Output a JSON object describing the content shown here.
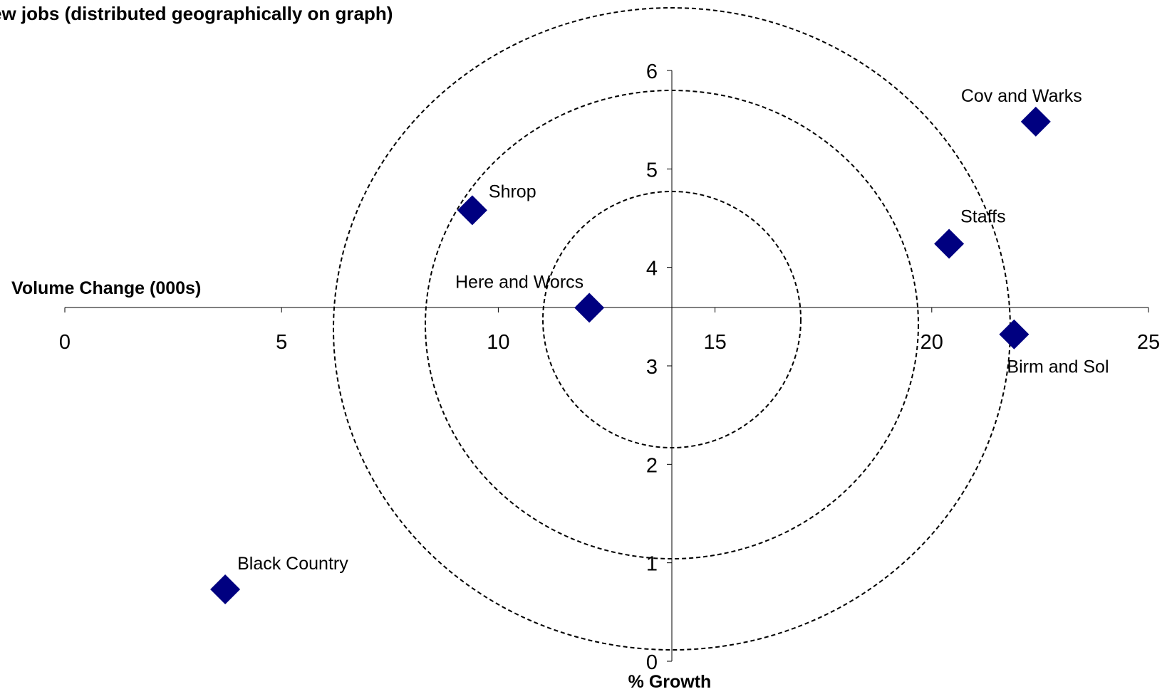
{
  "chart_data": {
    "type": "scatter",
    "title": "ew jobs (distributed geographically on graph)",
    "xlabel": "Volume Change (000s)",
    "ylabel": "% Growth",
    "xlim": [
      0,
      25
    ],
    "ylim": [
      0,
      6
    ],
    "x_ticks": [
      "0",
      "5",
      "10",
      "15",
      "20",
      "25"
    ],
    "y_ticks": [
      "0",
      "1",
      "2",
      "3",
      "4",
      "5",
      "6"
    ],
    "marker_color": "#000080",
    "grid": false,
    "points": [
      {
        "label": "Black Country",
        "x": 3.7,
        "y": 0.73
      },
      {
        "label": "Shrop",
        "x": 9.4,
        "y": 4.58
      },
      {
        "label": "Here and Worcs",
        "x": 12.1,
        "y": 3.59
      },
      {
        "label": "Staffs",
        "x": 20.4,
        "y": 4.24
      },
      {
        "label": "Birm and Sol",
        "x": 21.9,
        "y": 3.32
      },
      {
        "label": "Cov and Warks",
        "x": 22.4,
        "y": 5.48
      }
    ]
  }
}
